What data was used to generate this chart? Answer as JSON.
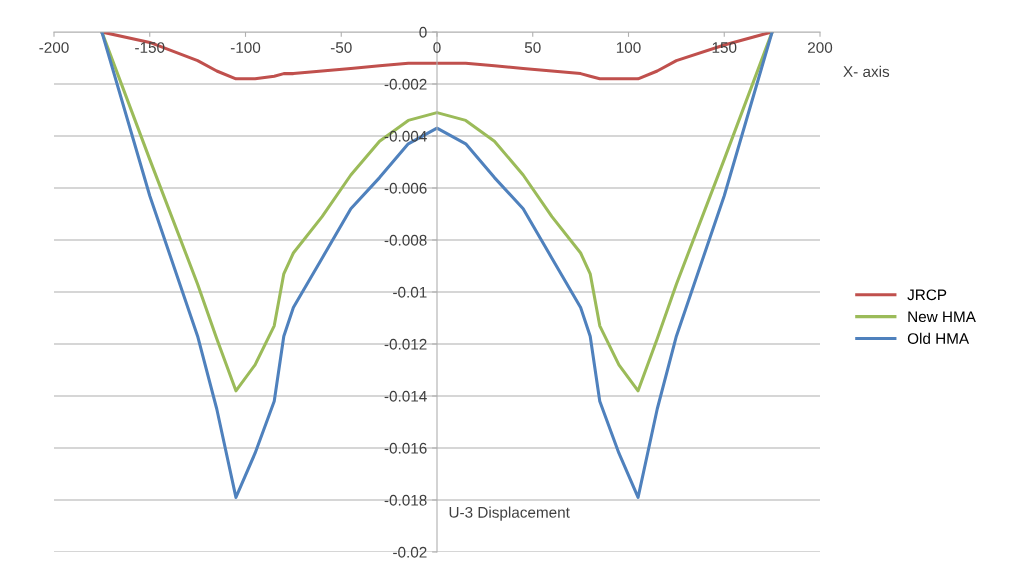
{
  "chart_data": {
    "type": "line",
    "xlabel": "X- axis",
    "ylabel": "U-3 Displacement",
    "xlim": [
      -200,
      200
    ],
    "xticks": [
      -200,
      -150,
      -100,
      -50,
      0,
      50,
      100,
      150,
      200
    ],
    "ylim": [
      -0.02,
      0
    ],
    "yticks": [
      0,
      -0.002,
      -0.004,
      -0.006,
      -0.008,
      -0.01,
      -0.012,
      -0.014,
      -0.016,
      -0.018,
      -0.02
    ],
    "grid": "y",
    "legend": "right",
    "marker": "none",
    "line_style": "solid",
    "x": [
      -175,
      -150,
      -125,
      -115,
      -105,
      -95,
      -85,
      -80,
      -75,
      -60,
      -45,
      -30,
      -15,
      0,
      15,
      30,
      45,
      60,
      75,
      80,
      85,
      95,
      105,
      115,
      125,
      150,
      175
    ],
    "series": [
      {
        "name": "JRCP",
        "color": "#c0504d",
        "values": [
          0,
          -0.0004,
          -0.0011,
          -0.0015,
          -0.0018,
          -0.0018,
          -0.0017,
          -0.0016,
          -0.0016,
          -0.0015,
          -0.0014,
          -0.0013,
          -0.0012,
          -0.0012,
          -0.0012,
          -0.0013,
          -0.0014,
          -0.0015,
          -0.0016,
          -0.0017,
          -0.0018,
          -0.0018,
          -0.0018,
          -0.0015,
          -0.0011,
          -0.0005,
          0
        ]
      },
      {
        "name": "New HMA",
        "color": "#9bbb59",
        "values": [
          0,
          -0.0049,
          -0.0097,
          -0.0118,
          -0.0138,
          -0.0128,
          -0.0113,
          -0.0093,
          -0.0085,
          -0.0071,
          -0.0055,
          -0.0042,
          -0.0034,
          -0.0031,
          -0.0034,
          -0.0042,
          -0.0055,
          -0.0071,
          -0.0085,
          -0.0093,
          -0.0113,
          -0.0128,
          -0.0138,
          -0.0118,
          -0.0097,
          -0.0049,
          0
        ]
      },
      {
        "name": "Old HMA",
        "color": "#4f81bd",
        "values": [
          0,
          -0.0063,
          -0.0117,
          -0.0145,
          -0.0179,
          -0.0162,
          -0.0142,
          -0.0117,
          -0.0106,
          -0.0087,
          -0.0068,
          -0.0056,
          -0.0043,
          -0.0037,
          -0.0043,
          -0.0056,
          -0.0068,
          -0.0087,
          -0.0106,
          -0.0117,
          -0.0142,
          -0.0162,
          -0.0179,
          -0.0145,
          -0.0117,
          -0.0063,
          0
        ]
      }
    ]
  }
}
